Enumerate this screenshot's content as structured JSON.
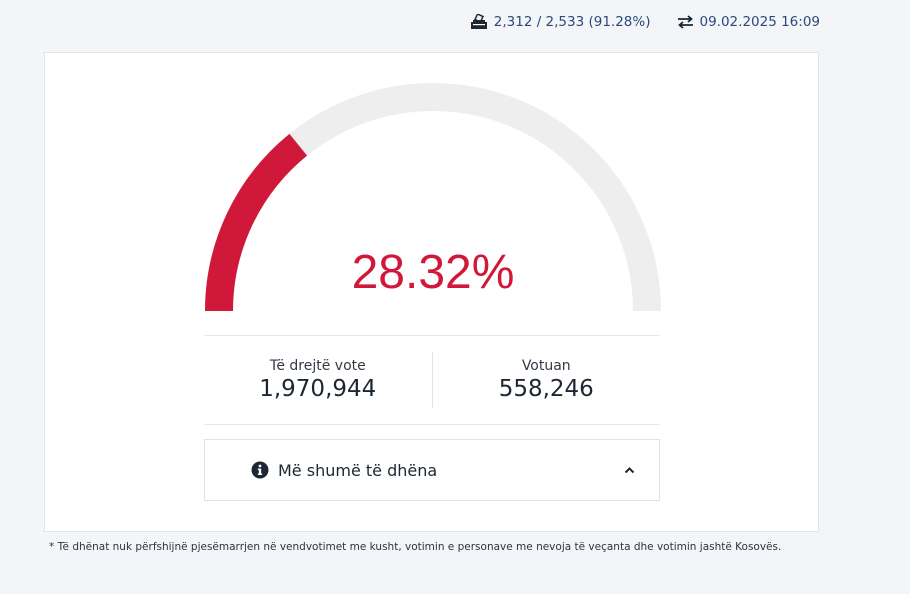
{
  "header": {
    "stations_text": "2,312 / 2,533 (91.28%)",
    "updated_text": "09.02.2025 16:09",
    "stations_icon": "ballot-box-icon",
    "updated_icon": "swap-arrows-icon"
  },
  "gauge": {
    "percent_label": "28.32%",
    "turnout_fraction": 0.2832,
    "fill_color": "#d0193a",
    "track_color": "#eeeeee"
  },
  "stats": {
    "eligible_label": "Të drejtë vote",
    "eligible_value": "1,970,944",
    "voted_label": "Votuan",
    "voted_value": "558,246"
  },
  "more_info": {
    "label": "Më shumë të dhëna",
    "icon": "info-circle-icon",
    "toggle_icon": "chevron-up-icon"
  },
  "footnote": "* Të dhënat nuk përfshijnë pjesëmarrjen në vendvotimet me kusht, votimin e personave me nevoja të veçanta dhe votimin jashtë Kosovës."
}
